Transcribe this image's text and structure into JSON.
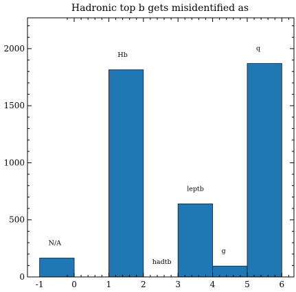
{
  "chart_data": {
    "type": "bar",
    "title": "Hadronic top b gets misidentified as",
    "xlabel": "",
    "ylabel": "",
    "xlim": [
      -1.35,
      6.35
    ],
    "ylim": [
      0,
      2270
    ],
    "bar_color": "#1f77b4",
    "grid": false,
    "bars": [
      {
        "label": "N/A",
        "x0": -1,
        "x1": 0,
        "value": 165
      },
      {
        "label": "Hb",
        "x0": 1,
        "x1": 2,
        "value": 1815
      },
      {
        "label": "hadtb",
        "x0": 2,
        "x1": 3,
        "value": 0
      },
      {
        "label": "leptb",
        "x0": 3,
        "x1": 4,
        "value": 640
      },
      {
        "label": "g",
        "x0": 4,
        "x1": 5,
        "value": 95
      },
      {
        "label": "q",
        "x0": 5,
        "x1": 6,
        "value": 1870
      }
    ],
    "xticks": [
      {
        "value": -1,
        "label": "-1"
      },
      {
        "value": 0,
        "label": "0"
      },
      {
        "value": 1,
        "label": "1"
      },
      {
        "value": 2,
        "label": "2"
      },
      {
        "value": 3,
        "label": "3"
      },
      {
        "value": 4,
        "label": "4"
      },
      {
        "value": 5,
        "label": "5"
      },
      {
        "value": 6,
        "label": "6"
      }
    ],
    "yticks": [
      {
        "value": 0,
        "label": "0"
      },
      {
        "value": 500,
        "label": "500"
      },
      {
        "value": 1000,
        "label": "1000"
      },
      {
        "value": 1500,
        "label": "1500"
      },
      {
        "value": 2000,
        "label": "2000"
      }
    ]
  }
}
